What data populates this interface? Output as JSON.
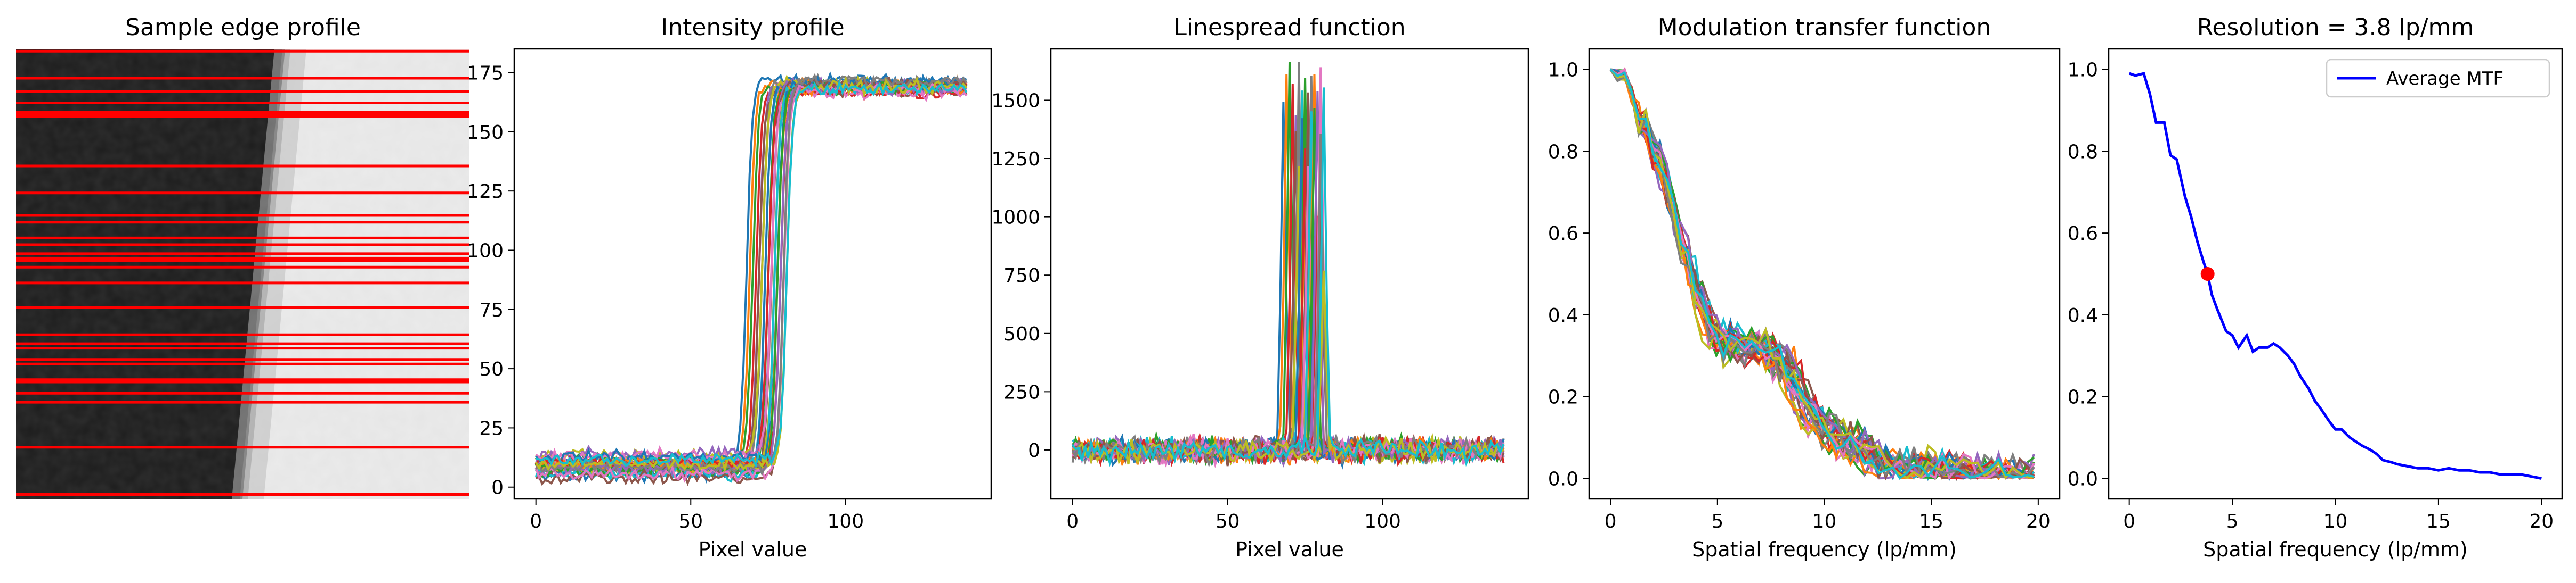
{
  "figure": {
    "background": "#ffffff"
  },
  "chart_data": [
    {
      "type": "image",
      "title": "Sample edge profile",
      "image": {
        "kind": "grayscale-edge",
        "left_tone": "dark",
        "right_tone": "light",
        "edge_slant": "edge runs from upper-right toward lower-left"
      },
      "scanlines": {
        "color": "#ff0000",
        "count": 30,
        "relative_heights": [
          0.005,
          0.065,
          0.095,
          0.12,
          0.14,
          0.145,
          0.15,
          0.26,
          0.32,
          0.37,
          0.385,
          0.42,
          0.435,
          0.455,
          0.465,
          0.47,
          0.485,
          0.52,
          0.575,
          0.635,
          0.655,
          0.665,
          0.69,
          0.7,
          0.735,
          0.74,
          0.765,
          0.785,
          0.885,
          0.99
        ]
      }
    },
    {
      "type": "line",
      "title": "Intensity profile",
      "xlabel": "Pixel value",
      "ylabel": "",
      "xlim": [
        -7,
        147
      ],
      "ylim": [
        -5,
        185
      ],
      "xticks": [
        "0",
        "50",
        "100"
      ],
      "yticks": [
        "0",
        "25",
        "50",
        "75",
        "100",
        "125",
        "150",
        "175"
      ],
      "series_count": 30,
      "low_level": 9,
      "high_level": 169,
      "noise": 2.5,
      "edge_positions": [
        68,
        69,
        70,
        71,
        72,
        72,
        73,
        73,
        73,
        74,
        74,
        75,
        75,
        75,
        76,
        76,
        76,
        77,
        77,
        77,
        78,
        78,
        78,
        79,
        79,
        80,
        80,
        80,
        81,
        81
      ],
      "x_points": 140
    },
    {
      "type": "line",
      "title": "Linespread function",
      "xlabel": "Pixel value",
      "ylabel": "",
      "xlim": [
        -7,
        147
      ],
      "ylim": [
        -210,
        1720
      ],
      "xticks": [
        "0",
        "50",
        "100"
      ],
      "yticks": [
        "0",
        "250",
        "500",
        "750",
        "1000",
        "1250",
        "1500"
      ],
      "series_count": 30,
      "peak_heights": [
        1490,
        1600,
        1640,
        1560,
        1450,
        1380,
        1530,
        1620,
        1250,
        1550,
        1400,
        1100,
        1580,
        1300,
        1540,
        1500,
        1200,
        1610,
        1350,
        1470,
        900,
        1560,
        1430,
        1000,
        1520,
        1150,
        1600,
        1320,
        800,
        1540
      ],
      "noise": 30
    },
    {
      "type": "line",
      "title": "Modulation transfer function",
      "xlabel": "Spatial frequency (lp/mm)",
      "ylabel": "",
      "xlim": [
        -1,
        21
      ],
      "ylim": [
        -0.05,
        1.05
      ],
      "xticks": [
        "0",
        "5",
        "10",
        "15",
        "20"
      ],
      "yticks": [
        "0.0",
        "0.2",
        "0.4",
        "0.6",
        "0.8",
        "1.0"
      ],
      "series_count": 30,
      "noise": 0.045
    },
    {
      "type": "line",
      "title": "Resolution = 3.8 lp/mm",
      "xlabel": "Spatial frequency (lp/mm)",
      "ylabel": "",
      "xlim": [
        -1,
        21
      ],
      "ylim": [
        -0.05,
        1.05
      ],
      "xticks": [
        "0",
        "5",
        "10",
        "15",
        "20"
      ],
      "yticks": [
        "0.0",
        "0.2",
        "0.4",
        "0.6",
        "0.8",
        "1.0"
      ],
      "legend": {
        "placement": "top-right",
        "entries": [
          "Average MTF"
        ]
      },
      "series": [
        {
          "name": "Average MTF",
          "color": "#0000ff",
          "x": [
            0,
            0.3,
            0.7,
            1.0,
            1.3,
            1.7,
            2.0,
            2.3,
            2.7,
            3.0,
            3.3,
            3.6,
            3.8,
            4.0,
            4.3,
            4.7,
            5.0,
            5.3,
            5.7,
            6.0,
            6.3,
            6.7,
            7.0,
            7.3,
            7.7,
            8.0,
            8.3,
            8.7,
            9.0,
            9.3,
            9.7,
            10.0,
            10.3,
            10.7,
            11.0,
            11.3,
            11.7,
            12.0,
            12.3,
            12.7,
            13.0,
            13.5,
            14.0,
            14.5,
            15.0,
            15.5,
            16.0,
            16.5,
            17.0,
            17.5,
            18.0,
            18.5,
            19.0,
            19.5,
            20.0
          ],
          "y": [
            0.99,
            0.985,
            0.99,
            0.94,
            0.87,
            0.87,
            0.79,
            0.78,
            0.69,
            0.64,
            0.58,
            0.53,
            0.5,
            0.45,
            0.41,
            0.36,
            0.35,
            0.32,
            0.35,
            0.31,
            0.32,
            0.32,
            0.33,
            0.32,
            0.3,
            0.28,
            0.25,
            0.22,
            0.19,
            0.17,
            0.14,
            0.12,
            0.12,
            0.1,
            0.09,
            0.08,
            0.07,
            0.06,
            0.045,
            0.04,
            0.035,
            0.03,
            0.025,
            0.025,
            0.02,
            0.025,
            0.02,
            0.02,
            0.015,
            0.015,
            0.01,
            0.01,
            0.01,
            0.005,
            0.0
          ]
        }
      ],
      "marker": {
        "x": 3.8,
        "y": 0.5,
        "color": "#ff0000"
      }
    }
  ],
  "palette": [
    "#1f77b4",
    "#ff7f0e",
    "#2ca02c",
    "#d62728",
    "#9467bd",
    "#8c564b",
    "#e377c2",
    "#7f7f7f",
    "#bcbd22",
    "#17becf"
  ]
}
